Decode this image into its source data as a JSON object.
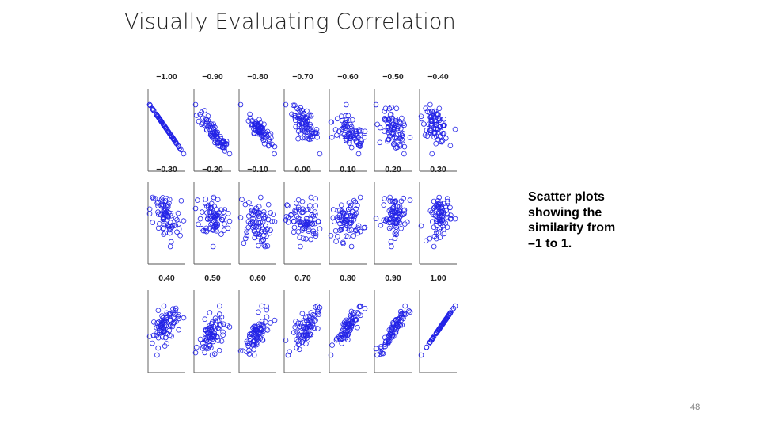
{
  "slide": {
    "title": "Visually Evaluating Correlation",
    "caption_lines": [
      "Scatter plots",
      "showing the",
      "similarity from",
      "–1 to 1."
    ],
    "page_number": "48"
  },
  "colors": {
    "marker": "#2323e6",
    "axis": "#555555",
    "text": "#222222"
  },
  "chart_data": {
    "type": "scatter",
    "marker": "open-circle",
    "points_per_panel": 80,
    "rows": 3,
    "columns": 7,
    "panels": [
      {
        "label": "−1.00",
        "r": -1.0
      },
      {
        "label": "−0.90",
        "r": -0.9
      },
      {
        "label": "−0.80",
        "r": -0.8
      },
      {
        "label": "−0.70",
        "r": -0.7
      },
      {
        "label": "−0.60",
        "r": -0.6
      },
      {
        "label": "−0.50",
        "r": -0.5
      },
      {
        "label": "−0.40",
        "r": -0.4
      },
      {
        "label": "−0.30",
        "r": -0.3
      },
      {
        "label": "−0.20",
        "r": -0.2
      },
      {
        "label": "−0.10",
        "r": -0.1
      },
      {
        "label": "0.00",
        "r": 0.0
      },
      {
        "label": "0.10",
        "r": 0.1
      },
      {
        "label": "0.20",
        "r": 0.2
      },
      {
        "label": "0.30",
        "r": 0.3
      },
      {
        "label": "0.40",
        "r": 0.4
      },
      {
        "label": "0.50",
        "r": 0.5
      },
      {
        "label": "0.60",
        "r": 0.6
      },
      {
        "label": "0.70",
        "r": 0.7
      },
      {
        "label": "0.80",
        "r": 0.8
      },
      {
        "label": "0.90",
        "r": 0.9
      },
      {
        "label": "1.00",
        "r": 1.0
      }
    ]
  }
}
